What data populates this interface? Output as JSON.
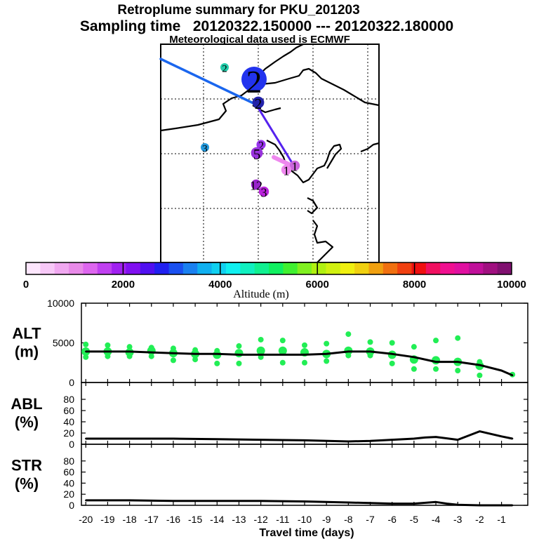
{
  "header": {
    "title": "Retroplume summary for PKU_201203",
    "sampling": "Sampling time   20120322.150000 --- 20120322.180000",
    "met": "Meteorological data used is ECMWF"
  },
  "colors": {
    "line": "#000000",
    "cluster": "#22ee55",
    "path_a": "#1a66ee",
    "path_b": "#5522ee",
    "path_c": "#ee88ee"
  },
  "map": {
    "labels": [
      {
        "text": "2",
        "color": "#22ccaa",
        "size": 1
      },
      {
        "text": "2",
        "color": "#2233ee",
        "size": 3
      },
      {
        "text": "2",
        "color": "#2222aa",
        "size": 1.4
      },
      {
        "text": "2",
        "color": "#9933ee",
        "size": 1.1
      },
      {
        "text": "3",
        "color": "#2299dd",
        "size": 1
      },
      {
        "text": "5",
        "color": "#9933dd",
        "size": 1.4
      },
      {
        "text": "1",
        "color": "#cc66dd",
        "size": 1.2
      },
      {
        "text": "12",
        "color": "#9922cc",
        "size": 1.2
      },
      {
        "text": "3",
        "color": "#bb22dd",
        "size": 1.2
      },
      {
        "text": "1",
        "color": "#ee88ee",
        "size": 1.2
      }
    ]
  },
  "colorbar": {
    "title": "Altitude (m)",
    "ticks": [
      "0",
      "2000",
      "4000",
      "6000",
      "8000",
      "10000"
    ],
    "colors": [
      "#fde6fd",
      "#f7c8f7",
      "#f0a8f0",
      "#e88ae8",
      "#dd66ee",
      "#c040f0",
      "#a020f0",
      "#8010f0",
      "#5010f0",
      "#2020f0",
      "#1a50f0",
      "#1a80f0",
      "#10b0f0",
      "#10d0f0",
      "#10f0f0",
      "#10f0c0",
      "#10f090",
      "#10f060",
      "#40f030",
      "#80f020",
      "#b0f010",
      "#d0f010",
      "#f0f010",
      "#f0d010",
      "#f0a010",
      "#f07010",
      "#f04010",
      "#f01010",
      "#f01060",
      "#f01090",
      "#e010a0",
      "#c0109a",
      "#a01080",
      "#801070"
    ]
  },
  "chart_data": [
    {
      "type": "line",
      "panel": "ALT",
      "ylabel": "ALT\n(m)",
      "ylabel_lines": [
        "ALT",
        "(m)"
      ],
      "ylim": [
        0,
        10000
      ],
      "yticks": [
        "10000",
        "5000",
        "0"
      ],
      "x": [
        -20,
        -19,
        -18,
        -17,
        -16,
        -15,
        -14,
        -13,
        -12,
        -11,
        -10,
        -9,
        -8,
        -7,
        -6,
        -5,
        -4,
        -3,
        -2,
        -1,
        -0.5
      ],
      "series": [
        {
          "name": "median altitude",
          "values": [
            3900,
            3900,
            3900,
            3800,
            3700,
            3600,
            3600,
            3500,
            3500,
            3500,
            3500,
            3600,
            3900,
            3900,
            3600,
            3200,
            2600,
            2600,
            2200,
            1500,
            900
          ]
        }
      ],
      "clusters": [
        {
          "x": -20,
          "values": [
            4800,
            3900,
            3200
          ]
        },
        {
          "x": -19,
          "values": [
            4700,
            3900,
            3300
          ]
        },
        {
          "x": -18,
          "values": [
            4500,
            3800,
            3300
          ]
        },
        {
          "x": -17,
          "values": [
            4400,
            4000,
            3300
          ]
        },
        {
          "x": -16,
          "values": [
            4300,
            3700,
            2800
          ]
        },
        {
          "x": -15,
          "values": [
            4100,
            3600,
            2900
          ]
        },
        {
          "x": -14,
          "values": [
            4000,
            3500,
            2400
          ]
        },
        {
          "x": -13,
          "values": [
            4600,
            3700,
            2400
          ]
        },
        {
          "x": -12,
          "values": [
            5400,
            4000,
            3200
          ]
        },
        {
          "x": -11,
          "values": [
            5300,
            4000,
            2500
          ]
        },
        {
          "x": -10,
          "values": [
            4700,
            3800,
            2500
          ]
        },
        {
          "x": -9,
          "values": [
            4900,
            3600,
            2700
          ]
        },
        {
          "x": -8,
          "values": [
            6100,
            4000,
            3400
          ]
        },
        {
          "x": -7,
          "values": [
            5100,
            3900,
            3400
          ]
        },
        {
          "x": -6,
          "values": [
            5000,
            3500,
            2400
          ]
        },
        {
          "x": -5,
          "values": [
            4500,
            2900,
            1700
          ]
        },
        {
          "x": -4,
          "values": [
            5300,
            2800,
            1700
          ]
        },
        {
          "x": -3,
          "values": [
            5600,
            2600,
            1500
          ]
        },
        {
          "x": -2,
          "values": [
            2600,
            2100,
            900
          ]
        },
        {
          "x": -0.5,
          "values": [
            1000
          ]
        }
      ]
    },
    {
      "type": "line",
      "panel": "ABL",
      "ylabel": "ABL\n(%)",
      "ylabel_lines": [
        "ABL",
        "(%)"
      ],
      "ylim": [
        0,
        100
      ],
      "yticks": [
        "80",
        "60",
        "40",
        "20",
        "0"
      ],
      "x": [
        -20,
        -18,
        -16,
        -14,
        -12,
        -10,
        -8,
        -7,
        -6,
        -5,
        -4.5,
        -4,
        -3,
        -2,
        -1,
        -0.5
      ],
      "series": [
        {
          "name": "ABL fraction",
          "values": [
            10,
            10,
            10,
            9,
            8,
            7,
            5,
            6,
            8,
            10,
            12,
            13,
            8,
            23,
            14,
            10
          ]
        }
      ]
    },
    {
      "type": "line",
      "panel": "STR",
      "ylabel": "STR\n(%)",
      "ylabel_lines": [
        "STR",
        "(%)"
      ],
      "ylim": [
        0,
        100
      ],
      "yticks": [
        "80",
        "60",
        "40",
        "20",
        "0"
      ],
      "xlabel": "Travel time (days)",
      "xlim": [
        -20.2,
        0.2
      ],
      "xticks": [
        "-20",
        "-19",
        "-18",
        "-17",
        "-16",
        "-15",
        "-14",
        "-13",
        "-12",
        "-11",
        "-10",
        "-9",
        "-8",
        "-7",
        "-6",
        "-5",
        "-4",
        "-3",
        "-2",
        "-1"
      ],
      "x": [
        -20,
        -18,
        -16,
        -14,
        -12,
        -10,
        -8,
        -7,
        -6,
        -5,
        -4,
        -3.5,
        -3,
        -2,
        -1,
        -0.5
      ],
      "series": [
        {
          "name": "STR fraction",
          "values": [
            9,
            9,
            8,
            8,
            8,
            7,
            5,
            4,
            3,
            3,
            6,
            3,
            1,
            0,
            0,
            0
          ]
        }
      ]
    }
  ]
}
